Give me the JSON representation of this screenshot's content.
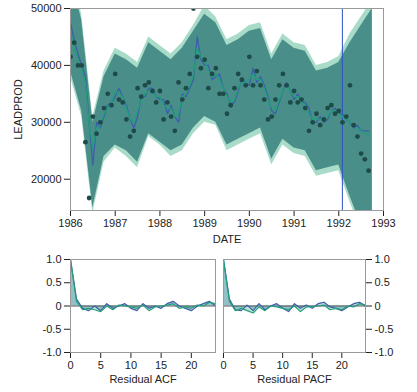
{
  "chart_data": [
    {
      "type": "line",
      "x_label": "DATE",
      "y_label": "LEADPROD",
      "xlim": [
        1986,
        1993
      ],
      "xticks": [
        1986,
        1987,
        1988,
        1989,
        1990,
        1991,
        1992,
        1993
      ],
      "ylim": [
        14500,
        50000
      ],
      "yticks": [
        20000,
        30000,
        40000,
        50000
      ],
      "vline": 1992.08,
      "x": [
        1986,
        1986.083,
        1986.167,
        1986.25,
        1986.333,
        1986.417,
        1986.5,
        1986.583,
        1986.667,
        1986.75,
        1986.833,
        1986.917,
        1987,
        1987.083,
        1987.167,
        1987.25,
        1987.333,
        1987.417,
        1987.5,
        1987.583,
        1987.667,
        1987.75,
        1987.833,
        1987.917,
        1988,
        1988.083,
        1988.167,
        1988.25,
        1988.333,
        1988.417,
        1988.5,
        1988.583,
        1988.667,
        1988.75,
        1988.833,
        1988.917,
        1989,
        1989.083,
        1989.167,
        1989.25,
        1989.333,
        1989.417,
        1989.5,
        1989.583,
        1989.667,
        1989.75,
        1989.833,
        1989.917,
        1990,
        1990.083,
        1990.167,
        1990.25,
        1990.333,
        1990.417,
        1990.5,
        1990.583,
        1990.667,
        1990.75,
        1990.833,
        1990.917,
        1991,
        1991.083,
        1991.167,
        1991.25,
        1991.333,
        1991.417,
        1991.5,
        1991.583,
        1991.667,
        1991.75,
        1991.833,
        1991.917,
        1992,
        1992.083,
        1992.167,
        1992.25,
        1992.333,
        1992.417,
        1992.5,
        1992.583,
        1992.667
      ],
      "series": [
        {
          "type": "area",
          "color": "#a9dcc8",
          "x": [
            1986,
            1986.25,
            1986.5,
            1986.75,
            1987,
            1987.25,
            1987.5,
            1987.75,
            1988,
            1988.25,
            1988.5,
            1988.75,
            1989,
            1989.25,
            1989.5,
            1989.75,
            1990,
            1990.25,
            1990.5,
            1990.75,
            1991,
            1991.25,
            1991.5,
            1991.75,
            1992,
            1992.25,
            1992.5,
            1992.75
          ],
          "lower": [
            38000,
            31000,
            14000,
            23000,
            25500,
            24000,
            22000,
            27500,
            26000,
            24000,
            25000,
            28000,
            30000,
            29500,
            25000,
            26000,
            27000,
            28000,
            22500,
            26000,
            24500,
            24000,
            20500,
            21000,
            21500,
            16000,
            11000,
            8000
          ],
          "upper": [
            57000,
            49000,
            31000,
            39000,
            43000,
            42000,
            40500,
            45000,
            43500,
            42000,
            44000,
            47000,
            50500,
            48500,
            44500,
            45500,
            47000,
            47500,
            42000,
            45500,
            44000,
            43500,
            40000,
            40500,
            41500,
            45500,
            48500,
            51500
          ]
        },
        {
          "type": "area",
          "color": "#4a8e8a",
          "x": [
            1986,
            1986.25,
            1986.5,
            1986.75,
            1987,
            1987.25,
            1987.5,
            1987.75,
            1988,
            1988.25,
            1988.5,
            1988.75,
            1989,
            1989.25,
            1989.5,
            1989.75,
            1990,
            1990.25,
            1990.5,
            1990.75,
            1991,
            1991.25,
            1991.5,
            1991.75,
            1992,
            1992.25,
            1992.5,
            1992.75
          ],
          "lower": [
            39000,
            32000,
            15000,
            24000,
            26000,
            25000,
            23000,
            28000,
            26500,
            25000,
            26000,
            29000,
            31000,
            30000,
            26000,
            27000,
            28000,
            29000,
            23500,
            27000,
            25500,
            25000,
            21500,
            22000,
            22500,
            17000,
            12000,
            9000
          ],
          "upper": [
            56000,
            48000,
            30000,
            38000,
            42000,
            41000,
            39500,
            44000,
            42500,
            41000,
            43000,
            46000,
            49000,
            47500,
            43500,
            44500,
            46000,
            46500,
            41000,
            44500,
            43000,
            42500,
            39000,
            39500,
            40500,
            44000,
            47000,
            50000
          ]
        },
        {
          "type": "line",
          "color": "#3d5fa8",
          "values": [
            47500,
            44500,
            42000,
            40000,
            38000,
            30000,
            22500,
            30000,
            29000,
            31000,
            33000,
            33500,
            34500,
            36000,
            34500,
            33000,
            30500,
            29000,
            31000,
            34500,
            34500,
            36000,
            36000,
            34500,
            34000,
            34000,
            31500,
            33000,
            31000,
            30000,
            35000,
            34500,
            36000,
            37500,
            45000,
            41000,
            40000,
            40000,
            37500,
            38000,
            38500,
            36000,
            35000,
            33000,
            33500,
            35500,
            37500,
            37000,
            36500,
            39500,
            37000,
            38000,
            36500,
            34500,
            32000,
            31500,
            33500,
            35500,
            37000,
            35500,
            34000,
            35000,
            33500,
            33500,
            32500,
            30000,
            30000,
            31000,
            30000,
            30500,
            32000,
            32500,
            31500,
            31500,
            30500,
            30000,
            29000,
            29500,
            28500,
            28500,
            28500
          ]
        },
        {
          "type": "line",
          "color": "#1fa07a",
          "values": [
            45500,
            43000,
            41000,
            39500,
            37000,
            29500,
            25500,
            29000,
            29500,
            31500,
            32500,
            33500,
            35500,
            35000,
            34500,
            32500,
            30500,
            30000,
            32000,
            34000,
            35000,
            35500,
            35500,
            34500,
            34500,
            33000,
            32500,
            32500,
            31000,
            31500,
            34500,
            35000,
            36500,
            38500,
            43000,
            41500,
            40500,
            39000,
            38000,
            38500,
            37500,
            36000,
            34500,
            33500,
            34000,
            36000,
            37000,
            37000,
            37500,
            38500,
            37500,
            37500,
            36000,
            34000,
            32500,
            32000,
            34000,
            35500,
            36500,
            35500,
            34500,
            34500,
            33500,
            33000,
            31500,
            30500,
            30500,
            30500,
            30500,
            31000,
            32000,
            32000,
            31500,
            31000,
            30500,
            30000,
            29500,
            29000,
            28500,
            28000,
            28000
          ]
        },
        {
          "type": "scatter",
          "color": "#1e4a48",
          "marker": "circle",
          "values": [
            41500,
            44000,
            40000,
            40000,
            26500,
            16700,
            31000,
            28000,
            30000,
            32500,
            35000,
            33000,
            38500,
            34000,
            33500,
            30500,
            27500,
            28500,
            36000,
            34500,
            36500,
            37000,
            35500,
            33500,
            35500,
            30500,
            33500,
            31000,
            28500,
            37000,
            34000,
            36000,
            38500,
            50000,
            41500,
            39500,
            41000,
            36000,
            38500,
            39500,
            35000,
            35000,
            31500,
            33000,
            36000,
            38500,
            37500,
            36500,
            41500,
            36500,
            39000,
            36500,
            34000,
            30500,
            31000,
            34000,
            36500,
            38500,
            36500,
            33500,
            35500,
            33500,
            34000,
            32500,
            28500,
            30000,
            31500,
            29500,
            30500,
            32500,
            33000,
            31500,
            32000,
            30000,
            31000,
            36500,
            29500,
            27500,
            24500,
            23500,
            21500
          ]
        }
      ]
    },
    {
      "type": "line",
      "x_label": "Residual ACF",
      "xlim": [
        0,
        24
      ],
      "xticks": [
        0,
        5,
        10,
        15,
        20
      ],
      "ylim": [
        -1,
        1
      ],
      "yticks": [
        {
          "value": -1,
          "label": "-1.0"
        },
        -0.5,
        0,
        0.5,
        {
          "value": 1,
          "label": "1.0"
        }
      ],
      "x": [
        0,
        1,
        2,
        3,
        4,
        5,
        6,
        7,
        8,
        9,
        10,
        11,
        12,
        13,
        14,
        15,
        16,
        17,
        18,
        19,
        20,
        21,
        22,
        23,
        24
      ],
      "series": [
        {
          "color": "#3d5fa8",
          "values": [
            1,
            0.15,
            -0.05,
            -0.1,
            0,
            -0.1,
            0.05,
            -0.05,
            0,
            0.05,
            -0.05,
            -0.1,
            0.05,
            -0.05,
            0,
            -0.05,
            0.05,
            0.1,
            0,
            -0.05,
            -0.1,
            0,
            0.05,
            0.1,
            0
          ]
        },
        {
          "color": "#1fa07a",
          "values": [
            1,
            0.1,
            -0.08,
            -0.05,
            -0.08,
            -0.12,
            0,
            -0.08,
            0.02,
            0,
            -0.02,
            -0.05,
            0.02,
            -0.1,
            -0.02,
            0,
            0.02,
            0.05,
            -0.05,
            -0.02,
            -0.05,
            0.02,
            0,
            0.08,
            0.05
          ]
        }
      ]
    },
    {
      "type": "line",
      "x_label": "Residual PACF",
      "xlim": [
        0,
        24
      ],
      "xticks": [
        0,
        5,
        10,
        15,
        20
      ],
      "ylim": [
        -1,
        1
      ],
      "yticks": [
        {
          "value": -1,
          "label": "-1.0"
        },
        -0.5,
        0,
        0.5,
        {
          "value": 1,
          "label": "1.0"
        }
      ],
      "x": [
        0,
        1,
        2,
        3,
        4,
        5,
        6,
        7,
        8,
        9,
        10,
        11,
        12,
        13,
        14,
        15,
        16,
        17,
        18,
        19,
        20,
        21,
        22,
        23,
        24
      ],
      "series": [
        {
          "color": "#3d5fa8",
          "values": [
            1,
            0.15,
            -0.08,
            -0.1,
            0.02,
            -0.1,
            0.05,
            -0.08,
            0,
            0.05,
            -0.05,
            -0.12,
            0.05,
            -0.05,
            0.02,
            -0.05,
            0.05,
            0.08,
            -0.02,
            -0.05,
            -0.1,
            -0.02,
            0.05,
            0.08,
            0
          ]
        },
        {
          "color": "#1fa07a",
          "values": [
            1,
            0.1,
            -0.1,
            -0.05,
            -0.1,
            -0.15,
            -0.02,
            -0.1,
            0,
            -0.02,
            -0.05,
            -0.08,
            0,
            -0.12,
            -0.02,
            -0.02,
            0,
            0.02,
            -0.08,
            -0.05,
            -0.08,
            0,
            -0.02,
            0.05,
            0.02
          ]
        }
      ]
    }
  ]
}
